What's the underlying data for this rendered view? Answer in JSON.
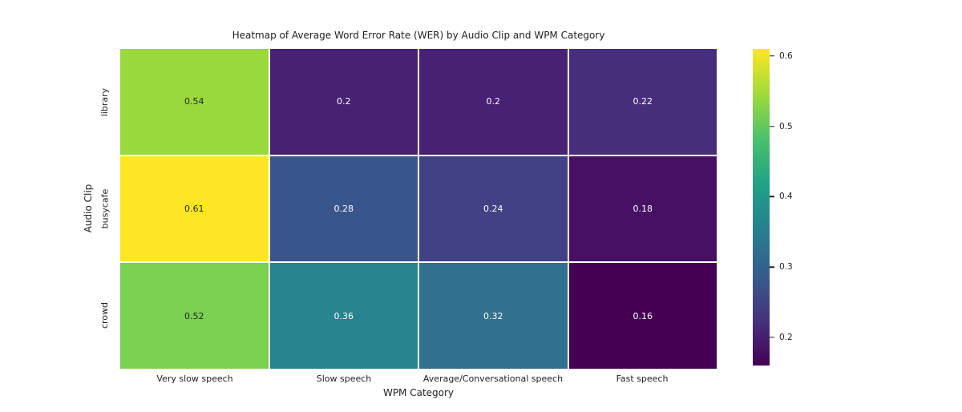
{
  "chart_data": {
    "type": "heatmap",
    "title": "Heatmap of Average Word Error Rate (WER) by Audio Clip and WPM Category",
    "xlabel": "WPM Category",
    "ylabel": "Audio Clip",
    "x_categories": [
      "Very slow speech",
      "Slow speech",
      "Average/Conversational speech",
      "Fast speech"
    ],
    "y_categories": [
      "library",
      "busycafe",
      "crowd"
    ],
    "values": [
      [
        0.54,
        0.2,
        0.2,
        0.22
      ],
      [
        0.61,
        0.28,
        0.24,
        0.18
      ],
      [
        0.52,
        0.36,
        0.32,
        0.16
      ]
    ],
    "cell_labels": [
      [
        "0.54",
        "0.2",
        "0.2",
        "0.22"
      ],
      [
        "0.61",
        "0.28",
        "0.24",
        "0.18"
      ],
      [
        "0.52",
        "0.36",
        "0.32",
        "0.16"
      ]
    ],
    "cell_colors": [
      [
        "#9ad93d",
        "#472173",
        "#472173",
        "#472e7c"
      ],
      [
        "#fde725",
        "#39568c",
        "#424086",
        "#471064"
      ],
      [
        "#7ad151",
        "#27838e",
        "#31708e",
        "#440154"
      ]
    ],
    "cell_text_colors": [
      [
        "#262626",
        "#ffffff",
        "#ffffff",
        "#ffffff"
      ],
      [
        "#262626",
        "#ffffff",
        "#ffffff",
        "#ffffff"
      ],
      [
        "#262626",
        "#ffffff",
        "#ffffff",
        "#ffffff"
      ]
    ],
    "grid_line_color": "#ffffff",
    "background": "#ffffff",
    "legend_position": "right-colorbar",
    "colorbar": {
      "vmin": 0.16,
      "vmax": 0.61,
      "ticks": [
        0.2,
        0.3,
        0.4,
        0.5,
        0.6
      ],
      "tick_labels": [
        "0.2",
        "0.3",
        "0.4",
        "0.5",
        "0.6"
      ],
      "palette": "viridis",
      "gradient_stops": [
        "#440154",
        "#46327e",
        "#365c8d",
        "#277f8e",
        "#1fa187",
        "#4ac16d",
        "#a0da39",
        "#fde725"
      ]
    }
  }
}
